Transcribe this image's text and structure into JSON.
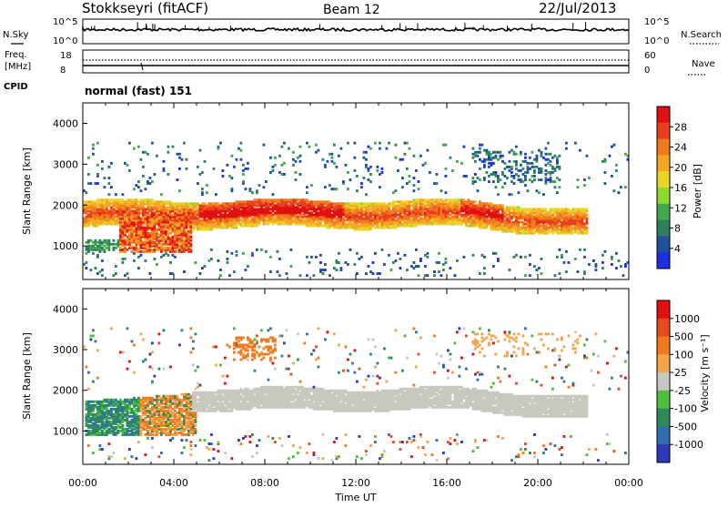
{
  "header": {
    "station": "Stokkseyri (fitACF)",
    "beam": "Beam 12",
    "date": "22/Jul/2013"
  },
  "nsky_panel": {
    "left_label": "N.Sky",
    "left_ticks": [
      "10^5",
      "10^0"
    ],
    "right_label": "N.Search",
    "right_ticks": [
      "10^5",
      "10^0"
    ]
  },
  "freq_panel": {
    "label_line1": "Freq.",
    "label_line2": "[MHz]",
    "left_ticks": [
      "18",
      "8"
    ],
    "right_label": "Nave",
    "right_ticks": [
      "60",
      "0"
    ]
  },
  "cpid": {
    "label": "CPID",
    "value": "normal (fast) 151"
  },
  "chart_data": [
    {
      "type": "heatmap",
      "title": "",
      "quantity": "Power",
      "ylabel": "Slant Range [km]",
      "ylim": [
        180,
        4500
      ],
      "yticks": [
        "1000",
        "2000",
        "3000",
        "4000"
      ],
      "xlabel": "Time UT",
      "xticks": [
        "00:00",
        "04:00",
        "08:00",
        "12:00",
        "16:00",
        "20:00",
        "00:00"
      ],
      "colorbar": {
        "label": "Power [dB]",
        "ticks": [
          "28",
          "24",
          "20",
          "16",
          "12",
          "8",
          "4"
        ],
        "range": [
          0,
          30
        ],
        "colors": [
          "#1d2fe0",
          "#2050a0",
          "#2f7f5f",
          "#3fa84a",
          "#8ed832",
          "#e8d526",
          "#f5a623",
          "#f07a1e",
          "#e8401c",
          "#e01010"
        ]
      },
      "features": [
        {
          "name": "main band",
          "time_h": [
            0,
            22
          ],
          "range_km": [
            1400,
            2000
          ],
          "power_db": 18
        },
        {
          "name": "strong patch",
          "time_h": [
            1.5,
            4.8
          ],
          "range_km": [
            850,
            1700
          ],
          "power_db": 28
        },
        {
          "name": "sparse upper echoes",
          "time_h": [
            0,
            24
          ],
          "range_km": [
            2200,
            3500
          ],
          "power_db": 6
        }
      ]
    },
    {
      "type": "heatmap",
      "title": "",
      "quantity": "Velocity",
      "ylabel": "Slant Range [km]",
      "ylim": [
        180,
        4500
      ],
      "yticks": [
        "1000",
        "2000",
        "3000",
        "4000"
      ],
      "xlabel": "Time UT",
      "xticks": [
        "00:00",
        "04:00",
        "08:00",
        "12:00",
        "16:00",
        "20:00",
        "00:00"
      ],
      "colorbar": {
        "label": "Velocity [m s⁻¹]",
        "ticks": [
          "1000",
          "500",
          "100",
          "25",
          "-25",
          "-100",
          "-500",
          "-1000"
        ],
        "colors": [
          "#2a3ab8",
          "#2f6fb0",
          "#2f8a5a",
          "#4cbf3a",
          "#c8c8c0",
          "#f2a54a",
          "#f07a1e",
          "#e84a1c",
          "#e01010"
        ]
      },
      "features": [
        {
          "name": "ground scatter band",
          "time_h": [
            5,
            22
          ],
          "range_km": [
            1500,
            2100
          ],
          "velocity": 0
        },
        {
          "name": "mixed flow patch",
          "time_h": [
            0,
            5
          ],
          "range_km": [
            800,
            1800
          ],
          "velocity": -300
        }
      ]
    }
  ]
}
